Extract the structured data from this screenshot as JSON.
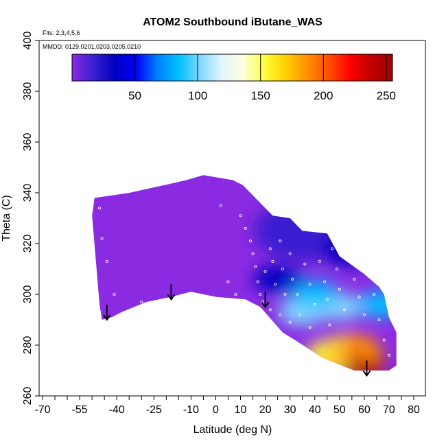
{
  "chart_data": {
    "type": "heatmap",
    "title": "ATOM2 Southbound iButane_WAS",
    "annotations": [
      "Flts: 2,3,4,5,6",
      "MMDD: 0129,0201,0203,0205,0210"
    ],
    "xlabel": "Latitude (deg N)",
    "ylabel": "Theta (C)",
    "xlim": [
      -70,
      85
    ],
    "ylim": [
      260,
      400
    ],
    "x_ticks": [
      -70,
      -55,
      -40,
      -25,
      -10,
      0,
      10,
      20,
      30,
      40,
      50,
      60,
      70,
      80
    ],
    "y_ticks": [
      260,
      280,
      300,
      320,
      340,
      360,
      380,
      400
    ],
    "colorbar": {
      "range": [
        0,
        255
      ],
      "ticks": [
        50,
        100,
        150,
        200,
        250
      ],
      "colors": [
        "#8a2be2",
        "#3a1fd0",
        "#0000c0",
        "#0000ff",
        "#0080ff",
        "#00c0ff",
        "#80d8ff",
        "#e0f4ff",
        "#ffffe0",
        "#ffff40",
        "#ffd000",
        "#ff9000",
        "#ff5000",
        "#ff0000",
        "#c00000",
        "#a00000"
      ]
    },
    "outline": [
      [
        -50,
        331
      ],
      [
        -49,
        338
      ],
      [
        -35,
        340
      ],
      [
        -21,
        343
      ],
      [
        -12,
        345
      ],
      [
        -5,
        347
      ],
      [
        7,
        345
      ],
      [
        11,
        343
      ],
      [
        16,
        338
      ],
      [
        23,
        331
      ],
      [
        30,
        330
      ],
      [
        35,
        325
      ],
      [
        45,
        324
      ],
      [
        50,
        315
      ],
      [
        60,
        308
      ],
      [
        66,
        303
      ],
      [
        68,
        300
      ],
      [
        70,
        291
      ],
      [
        73,
        285
      ],
      [
        73,
        272
      ],
      [
        70,
        270
      ],
      [
        56,
        270
      ],
      [
        43,
        275
      ],
      [
        32,
        282
      ],
      [
        27,
        285
      ],
      [
        18,
        295
      ],
      [
        12,
        298
      ],
      [
        0,
        299
      ],
      [
        -5,
        300
      ],
      [
        -10,
        301
      ],
      [
        -18,
        299
      ],
      [
        -28,
        297
      ],
      [
        -38,
        293
      ],
      [
        -42,
        291
      ],
      [
        -46,
        290
      ],
      [
        -47,
        296
      ]
    ],
    "hotspots": [
      {
        "lat": 57,
        "theta": 273,
        "value": 230
      },
      {
        "lat": 55,
        "theta": 278,
        "value": 180
      },
      {
        "lat": 48,
        "theta": 276,
        "value": 160
      },
      {
        "lat": 35,
        "theta": 293,
        "value": 100
      },
      {
        "lat": 50,
        "theta": 295,
        "value": 95
      },
      {
        "lat": 40,
        "theta": 300,
        "value": 80
      },
      {
        "lat": 67,
        "theta": 296,
        "value": 90
      },
      {
        "lat": 25,
        "theta": 306,
        "value": 30
      }
    ],
    "arrows": [
      {
        "lat": -44,
        "theta": 290
      },
      {
        "lat": -18,
        "theta": 298
      },
      {
        "lat": 20,
        "theta": 295
      },
      {
        "lat": 61,
        "theta": 268
      }
    ]
  }
}
